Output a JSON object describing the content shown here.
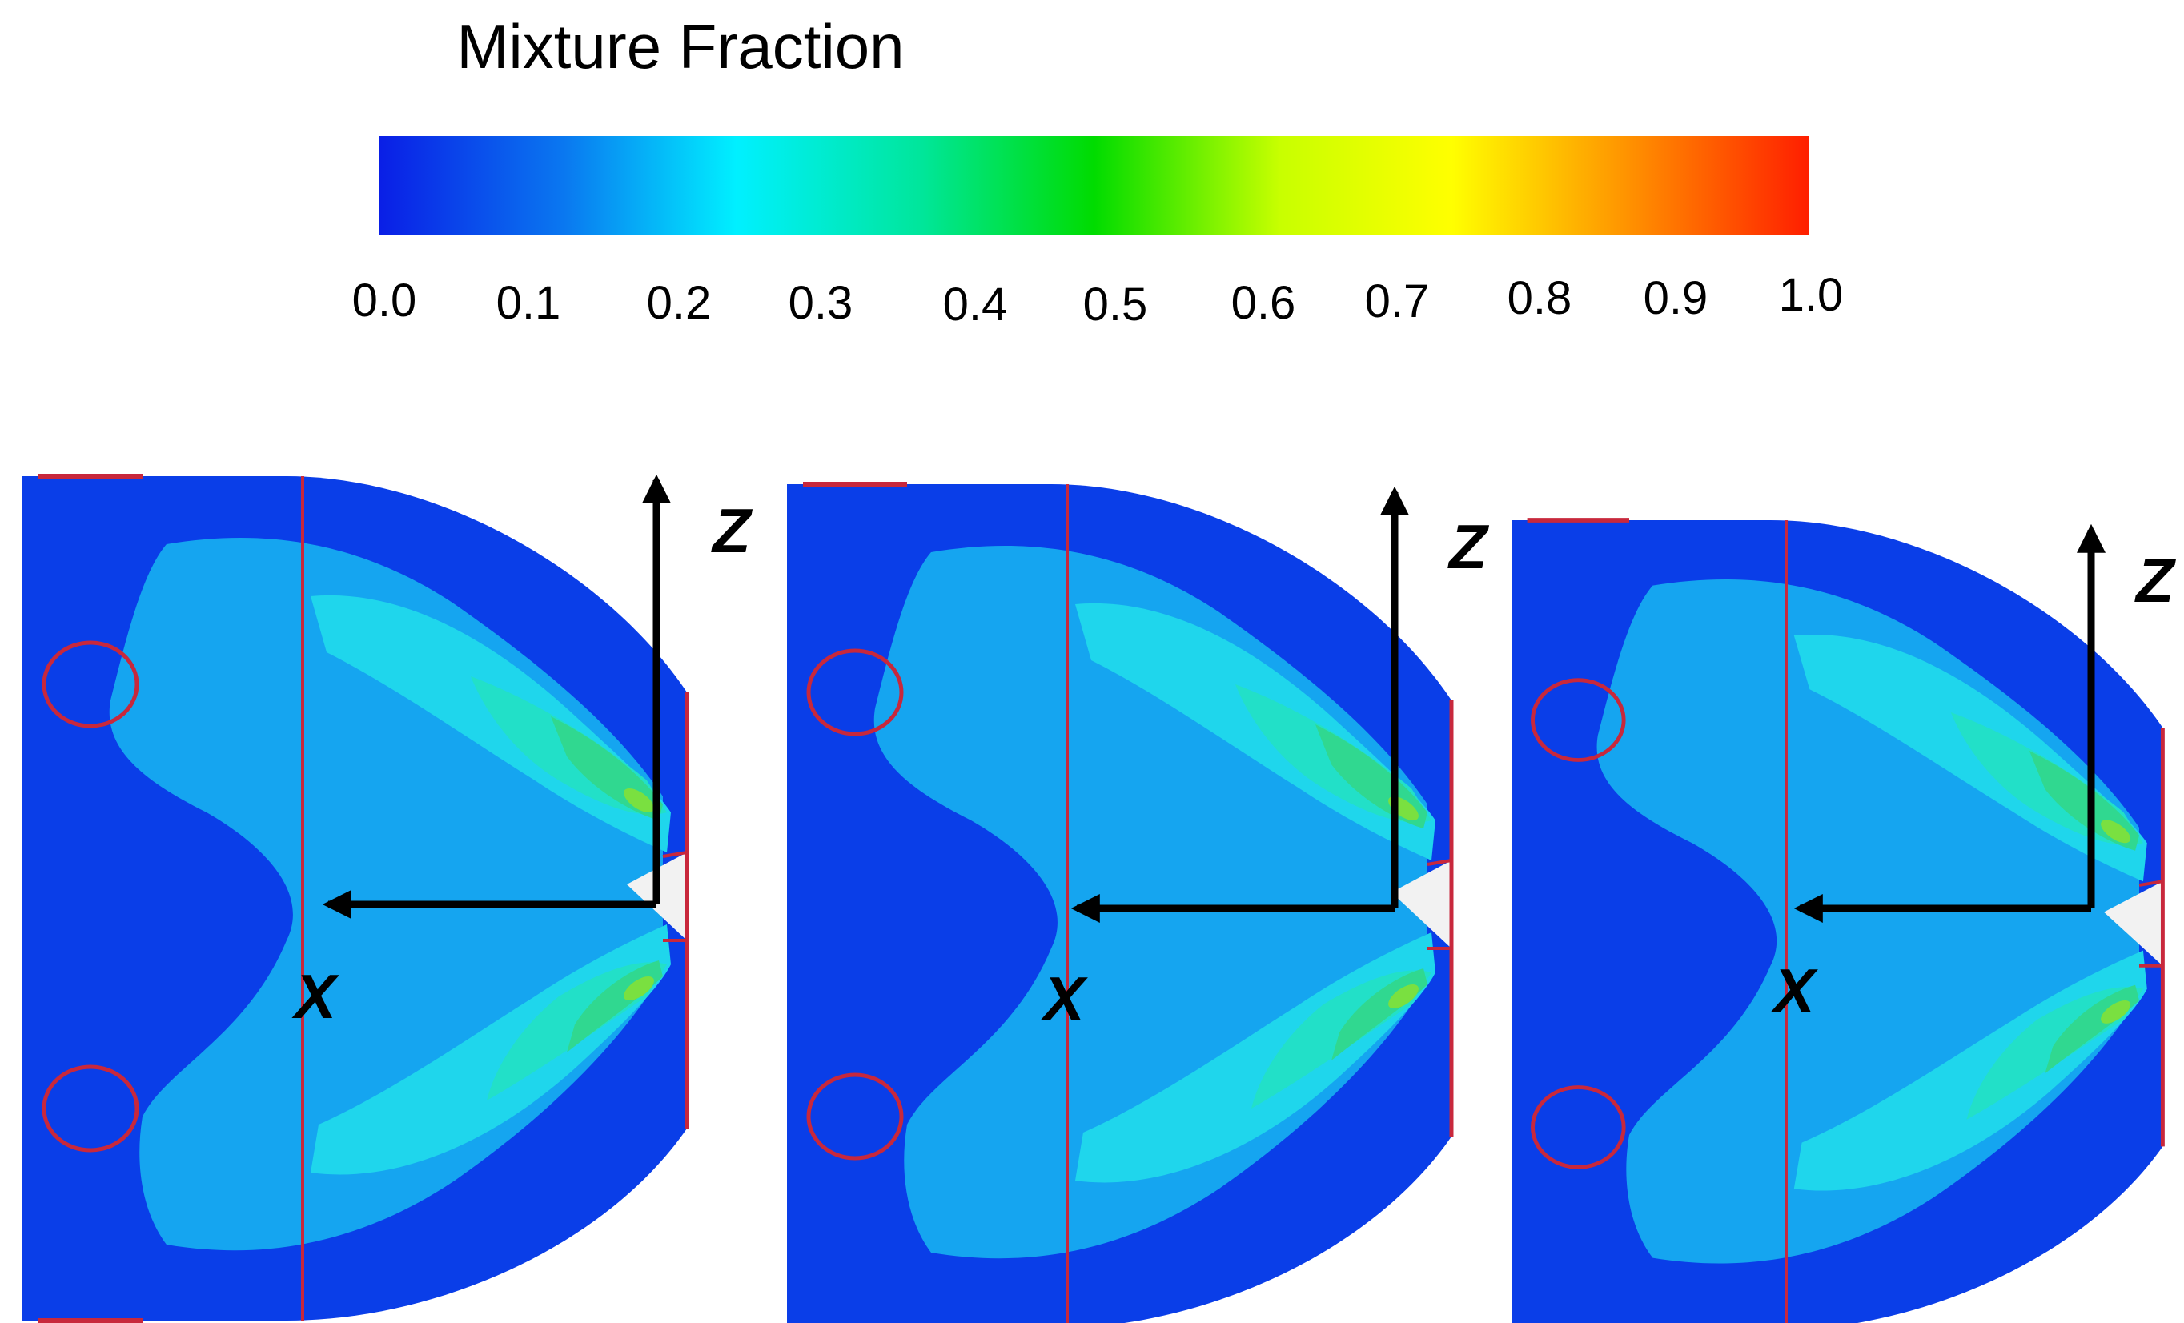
{
  "colorbar": {
    "title": "Mixture Fraction",
    "ticks": [
      "0.0",
      "0.1",
      "0.2",
      "0.3",
      "0.4",
      "0.5",
      "0.6",
      "0.7",
      "0.8",
      "0.9",
      "1.0"
    ],
    "range": [
      0.0,
      1.0
    ],
    "colormap": [
      "#0a1ee6",
      "#0a78f0",
      "#00f0ff",
      "#00e678",
      "#00dc00",
      "#c8ff00",
      "#ffff00",
      "#ff8c00",
      "#ff1e00"
    ]
  },
  "panels": [
    {
      "x_axis_label": "X",
      "z_axis_label": "Z"
    },
    {
      "x_axis_label": "X",
      "z_axis_label": "Z"
    },
    {
      "x_axis_label": "X",
      "z_axis_label": "Z"
    }
  ],
  "colors": {
    "level_0": "#0a3ee8",
    "level_1": "#15a5f0",
    "level_2": "#1fd6ec",
    "level_3": "#22e0c8",
    "level_4": "#30d890",
    "level_5": "#7ae040",
    "level_6": "#e0ee30",
    "marker": "#c8283c",
    "axis": "#000000"
  }
}
